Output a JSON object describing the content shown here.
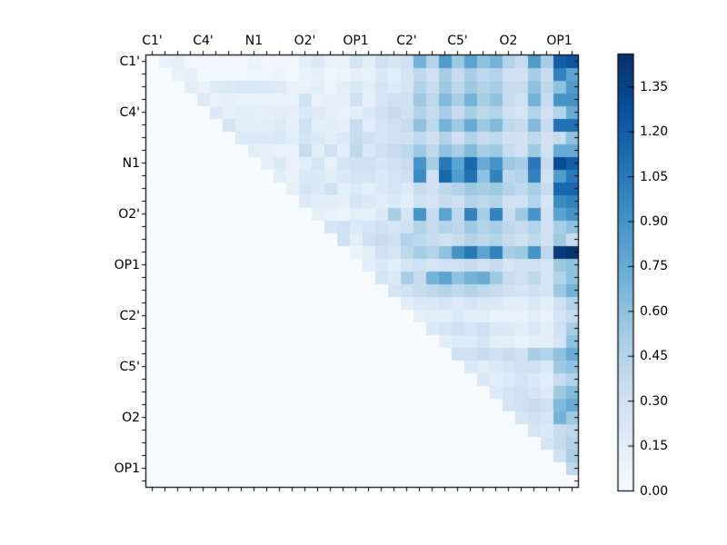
{
  "figure": {
    "background": "#ffffff",
    "frame_color": "#000000",
    "label_color": "#000000"
  },
  "chart_data": {
    "type": "heatmap",
    "title": "",
    "colormap": "Blues",
    "vmin": 0.0,
    "vmax": 1.46,
    "n_rows": 34,
    "n_cols": 34,
    "grid": false,
    "triangular": "upper",
    "x_tick_labels": [
      "C1'",
      "C4'",
      "N1",
      "O2'",
      "OP1",
      "C2'",
      "C5'",
      "O2",
      "OP1"
    ],
    "x_tick_positions": [
      0,
      4,
      8,
      12,
      16,
      20,
      24,
      28,
      32
    ],
    "y_tick_labels": [
      "C1'",
      "C4'",
      "N1",
      "O2'",
      "OP1",
      "C2'",
      "C5'",
      "O2",
      "OP1"
    ],
    "y_tick_positions": [
      0,
      4,
      8,
      12,
      16,
      20,
      24,
      28,
      32
    ],
    "colorbar": {
      "position": "right",
      "tick_labels": [
        "0.00",
        "0.15",
        "0.30",
        "0.45",
        "0.60",
        "0.75",
        "0.90",
        "1.05",
        "1.20",
        "1.35"
      ],
      "tick_values": [
        0.0,
        0.15,
        0.3,
        0.45,
        0.6,
        0.75,
        0.9,
        1.05,
        1.2,
        1.35
      ]
    },
    "colormap_stops": [
      [
        0.0,
        "#f7fbff"
      ],
      [
        0.125,
        "#deebf7"
      ],
      [
        0.25,
        "#c6dbef"
      ],
      [
        0.375,
        "#9ecae1"
      ],
      [
        0.5,
        "#6baed6"
      ],
      [
        0.625,
        "#4292c6"
      ],
      [
        0.75,
        "#2171b5"
      ],
      [
        0.875,
        "#08519c"
      ],
      [
        1.0,
        "#08306b"
      ]
    ],
    "matrix": [
      [
        0,
        0.1,
        0.12,
        0.05,
        0.04,
        0.04,
        0.05,
        0.04,
        0.08,
        0.05,
        0.06,
        0.05,
        0.15,
        0.2,
        0.1,
        0.1,
        0.25,
        0.15,
        0.3,
        0.25,
        0.3,
        0.7,
        0.45,
        0.85,
        0.55,
        0.8,
        0.6,
        0.7,
        0.45,
        0.35,
        0.85,
        0.5,
        1.2,
        1.25
      ],
      [
        0,
        0,
        0.1,
        0.12,
        0.05,
        0.04,
        0.04,
        0.05,
        0.06,
        0.06,
        0.07,
        0.05,
        0.1,
        0.12,
        0.06,
        0.08,
        0.12,
        0.1,
        0.2,
        0.15,
        0.25,
        0.4,
        0.3,
        0.5,
        0.35,
        0.5,
        0.4,
        0.45,
        0.3,
        0.3,
        0.5,
        0.35,
        1.0,
        0.8
      ],
      [
        0,
        0,
        0,
        0.15,
        0.1,
        0.18,
        0.2,
        0.22,
        0.22,
        0.2,
        0.18,
        0.1,
        0.1,
        0.15,
        0.08,
        0.15,
        0.22,
        0.15,
        0.25,
        0.2,
        0.25,
        0.45,
        0.35,
        0.55,
        0.4,
        0.55,
        0.45,
        0.5,
        0.35,
        0.35,
        0.6,
        0.4,
        0.6,
        0.85
      ],
      [
        0,
        0,
        0,
        0,
        0.18,
        0.1,
        0.12,
        0.1,
        0.1,
        0.1,
        0.1,
        0.1,
        0.3,
        0.1,
        0.12,
        0.12,
        0.3,
        0.12,
        0.25,
        0.3,
        0.3,
        0.55,
        0.4,
        0.65,
        0.5,
        0.7,
        0.5,
        0.6,
        0.35,
        0.3,
        0.7,
        0.35,
        0.9,
        0.9
      ],
      [
        0,
        0,
        0,
        0,
        0,
        0.2,
        0.12,
        0.15,
        0.15,
        0.12,
        0.15,
        0.12,
        0.2,
        0.18,
        0.12,
        0.1,
        0.15,
        0.2,
        0.3,
        0.35,
        0.3,
        0.45,
        0.35,
        0.5,
        0.35,
        0.5,
        0.4,
        0.45,
        0.3,
        0.25,
        0.45,
        0.3,
        0.45,
        0.75
      ],
      [
        0,
        0,
        0,
        0,
        0,
        0,
        0.25,
        0.15,
        0.15,
        0.15,
        0.18,
        0.12,
        0.3,
        0.15,
        0.15,
        0.12,
        0.35,
        0.15,
        0.25,
        0.3,
        0.35,
        0.6,
        0.4,
        0.7,
        0.55,
        0.75,
        0.55,
        0.65,
        0.4,
        0.35,
        0.65,
        0.35,
        1.1,
        1.1
      ],
      [
        0,
        0,
        0,
        0,
        0,
        0,
        0,
        0.2,
        0.2,
        0.2,
        0.22,
        0.15,
        0.25,
        0.2,
        0.15,
        0.2,
        0.35,
        0.3,
        0.25,
        0.3,
        0.3,
        0.4,
        0.3,
        0.45,
        0.3,
        0.45,
        0.35,
        0.4,
        0.3,
        0.3,
        0.4,
        0.3,
        0.35,
        0.6
      ],
      [
        0,
        0,
        0,
        0,
        0,
        0,
        0,
        0,
        0.15,
        0.12,
        0.1,
        0.1,
        0.35,
        0.15,
        0.3,
        0.15,
        0.4,
        0.2,
        0.3,
        0.35,
        0.4,
        0.55,
        0.4,
        0.6,
        0.5,
        0.65,
        0.5,
        0.55,
        0.35,
        0.3,
        0.55,
        0.3,
        0.75,
        0.75
      ],
      [
        0,
        0,
        0,
        0,
        0,
        0,
        0,
        0,
        0,
        0.12,
        0.2,
        0.1,
        0.15,
        0.25,
        0.1,
        0.25,
        0.3,
        0.3,
        0.25,
        0.3,
        0.35,
        0.9,
        0.5,
        1.05,
        0.8,
        1.15,
        0.75,
        0.9,
        0.55,
        0.5,
        1.05,
        0.35,
        1.3,
        1.2
      ],
      [
        0,
        0,
        0,
        0,
        0,
        0,
        0,
        0,
        0,
        0,
        0.15,
        0.1,
        0.2,
        0.2,
        0.15,
        0.2,
        0.25,
        0.25,
        0.2,
        0.25,
        0.3,
        0.95,
        0.3,
        1.15,
        0.85,
        1.1,
        0.6,
        1.0,
        0.4,
        0.45,
        1.0,
        0.3,
        0.85,
        1.05
      ],
      [
        0,
        0,
        0,
        0,
        0,
        0,
        0,
        0,
        0,
        0,
        0,
        0.12,
        0.25,
        0.2,
        0.3,
        0.15,
        0.2,
        0.15,
        0.2,
        0.25,
        0.2,
        0.35,
        0.3,
        0.4,
        0.45,
        0.55,
        0.5,
        0.55,
        0.45,
        0.4,
        0.5,
        0.35,
        1.15,
        1.15
      ],
      [
        0,
        0,
        0,
        0,
        0,
        0,
        0,
        0,
        0,
        0,
        0,
        0,
        0.2,
        0.15,
        0.15,
        0.12,
        0.25,
        0.2,
        0.15,
        0.2,
        0.15,
        0.3,
        0.25,
        0.35,
        0.3,
        0.45,
        0.4,
        0.45,
        0.3,
        0.3,
        0.45,
        0.25,
        0.95,
        1.0
      ],
      [
        0,
        0,
        0,
        0,
        0,
        0,
        0,
        0,
        0,
        0,
        0,
        0,
        0,
        0.12,
        0.1,
        0.08,
        0.15,
        0.12,
        0.2,
        0.5,
        0.25,
        0.9,
        0.35,
        0.8,
        0.4,
        1.0,
        0.5,
        1.0,
        0.35,
        0.55,
        0.9,
        0.3,
        0.8,
        0.9
      ],
      [
        0,
        0,
        0,
        0,
        0,
        0,
        0,
        0,
        0,
        0,
        0,
        0,
        0,
        0,
        0.25,
        0.3,
        0.2,
        0.25,
        0.3,
        0.25,
        0.3,
        0.45,
        0.35,
        0.45,
        0.4,
        0.55,
        0.45,
        0.5,
        0.4,
        0.35,
        0.45,
        0.3,
        0.5,
        0.6
      ],
      [
        0,
        0,
        0,
        0,
        0,
        0,
        0,
        0,
        0,
        0,
        0,
        0,
        0,
        0,
        0,
        0.3,
        0.15,
        0.3,
        0.35,
        0.3,
        0.45,
        0.4,
        0.35,
        0.3,
        0.35,
        0.45,
        0.4,
        0.45,
        0.35,
        0.3,
        0.4,
        0.3,
        0.55,
        0.35
      ],
      [
        0,
        0,
        0,
        0,
        0,
        0,
        0,
        0,
        0,
        0,
        0,
        0,
        0,
        0,
        0,
        0,
        0.1,
        0.15,
        0.3,
        0.25,
        0.4,
        0.5,
        0.45,
        0.6,
        0.9,
        1.05,
        0.8,
        1.0,
        0.5,
        0.55,
        0.9,
        0.4,
        1.4,
        1.45
      ],
      [
        0,
        0,
        0,
        0,
        0,
        0,
        0,
        0,
        0,
        0,
        0,
        0,
        0,
        0,
        0,
        0,
        0,
        0.15,
        0.2,
        0.15,
        0.25,
        0.3,
        0.25,
        0.3,
        0.3,
        0.35,
        0.3,
        0.35,
        0.25,
        0.3,
        0.3,
        0.25,
        0.55,
        0.6
      ],
      [
        0,
        0,
        0,
        0,
        0,
        0,
        0,
        0,
        0,
        0,
        0,
        0,
        0,
        0,
        0,
        0,
        0,
        0,
        0.25,
        0.2,
        0.5,
        0.35,
        0.7,
        0.8,
        0.6,
        0.7,
        0.75,
        0.55,
        0.35,
        0.3,
        0.4,
        0.25,
        0.45,
        0.6
      ],
      [
        0,
        0,
        0,
        0,
        0,
        0,
        0,
        0,
        0,
        0,
        0,
        0,
        0,
        0,
        0,
        0,
        0,
        0,
        0,
        0.25,
        0.3,
        0.35,
        0.4,
        0.45,
        0.4,
        0.45,
        0.4,
        0.35,
        0.3,
        0.25,
        0.3,
        0.25,
        0.55,
        0.7
      ],
      [
        0,
        0,
        0,
        0,
        0,
        0,
        0,
        0,
        0,
        0,
        0,
        0,
        0,
        0,
        0,
        0,
        0,
        0,
        0,
        0,
        0.15,
        0.2,
        0.2,
        0.25,
        0.2,
        0.25,
        0.2,
        0.2,
        0.15,
        0.15,
        0.2,
        0.15,
        0.3,
        0.45
      ],
      [
        0,
        0,
        0,
        0,
        0,
        0,
        0,
        0,
        0,
        0,
        0,
        0,
        0,
        0,
        0,
        0,
        0,
        0,
        0,
        0,
        0,
        0.12,
        0.15,
        0.15,
        0.2,
        0.15,
        0.15,
        0.1,
        0.1,
        0.1,
        0.15,
        0.1,
        0.25,
        0.35
      ],
      [
        0,
        0,
        0,
        0,
        0,
        0,
        0,
        0,
        0,
        0,
        0,
        0,
        0,
        0,
        0,
        0,
        0,
        0,
        0,
        0,
        0,
        0,
        0.2,
        0.25,
        0.3,
        0.25,
        0.3,
        0.2,
        0.2,
        0.15,
        0.2,
        0.15,
        0.3,
        0.5
      ],
      [
        0,
        0,
        0,
        0,
        0,
        0,
        0,
        0,
        0,
        0,
        0,
        0,
        0,
        0,
        0,
        0,
        0,
        0,
        0,
        0,
        0,
        0,
        0,
        0.15,
        0.2,
        0.2,
        0.25,
        0.15,
        0.15,
        0.1,
        0.15,
        0.15,
        0.25,
        0.6
      ],
      [
        0,
        0,
        0,
        0,
        0,
        0,
        0,
        0,
        0,
        0,
        0,
        0,
        0,
        0,
        0,
        0,
        0,
        0,
        0,
        0,
        0,
        0,
        0,
        0,
        0.3,
        0.3,
        0.35,
        0.3,
        0.35,
        0.3,
        0.5,
        0.45,
        0.6,
        0.75
      ],
      [
        0,
        0,
        0,
        0,
        0,
        0,
        0,
        0,
        0,
        0,
        0,
        0,
        0,
        0,
        0,
        0,
        0,
        0,
        0,
        0,
        0,
        0,
        0,
        0,
        0,
        0.2,
        0.15,
        0.2,
        0.25,
        0.3,
        0.3,
        0.2,
        0.55,
        0.6
      ],
      [
        0,
        0,
        0,
        0,
        0,
        0,
        0,
        0,
        0,
        0,
        0,
        0,
        0,
        0,
        0,
        0,
        0,
        0,
        0,
        0,
        0,
        0,
        0,
        0,
        0,
        0,
        0.2,
        0.15,
        0.2,
        0.25,
        0.2,
        0.15,
        0.35,
        0.45
      ],
      [
        0,
        0,
        0,
        0,
        0,
        0,
        0,
        0,
        0,
        0,
        0,
        0,
        0,
        0,
        0,
        0,
        0,
        0,
        0,
        0,
        0,
        0,
        0,
        0,
        0,
        0,
        0,
        0.2,
        0.25,
        0.3,
        0.25,
        0.2,
        0.55,
        0.65
      ],
      [
        0,
        0,
        0,
        0,
        0,
        0,
        0,
        0,
        0,
        0,
        0,
        0,
        0,
        0,
        0,
        0,
        0,
        0,
        0,
        0,
        0,
        0,
        0,
        0,
        0,
        0,
        0,
        0,
        0.25,
        0.3,
        0.35,
        0.3,
        0.65,
        0.75
      ],
      [
        0,
        0,
        0,
        0,
        0,
        0,
        0,
        0,
        0,
        0,
        0,
        0,
        0,
        0,
        0,
        0,
        0,
        0,
        0,
        0,
        0,
        0,
        0,
        0,
        0,
        0,
        0,
        0,
        0,
        0.25,
        0.3,
        0.25,
        0.7,
        0.55
      ],
      [
        0,
        0,
        0,
        0,
        0,
        0,
        0,
        0,
        0,
        0,
        0,
        0,
        0,
        0,
        0,
        0,
        0,
        0,
        0,
        0,
        0,
        0,
        0,
        0,
        0,
        0,
        0,
        0,
        0,
        0,
        0.25,
        0.2,
        0.35,
        0.4
      ],
      [
        0,
        0,
        0,
        0,
        0,
        0,
        0,
        0,
        0,
        0,
        0,
        0,
        0,
        0,
        0,
        0,
        0,
        0,
        0,
        0,
        0,
        0,
        0,
        0,
        0,
        0,
        0,
        0,
        0,
        0,
        0,
        0.25,
        0.35,
        0.45
      ],
      [
        0,
        0,
        0,
        0,
        0,
        0,
        0,
        0,
        0,
        0,
        0,
        0,
        0,
        0,
        0,
        0,
        0,
        0,
        0,
        0,
        0,
        0,
        0,
        0,
        0,
        0,
        0,
        0,
        0,
        0,
        0,
        0,
        0.3,
        0.5
      ],
      [
        0,
        0,
        0,
        0,
        0,
        0,
        0,
        0,
        0,
        0,
        0,
        0,
        0,
        0,
        0,
        0,
        0,
        0,
        0,
        0,
        0,
        0,
        0,
        0,
        0,
        0,
        0,
        0,
        0,
        0,
        0,
        0,
        0,
        0.4
      ],
      [
        0,
        0,
        0,
        0,
        0,
        0,
        0,
        0,
        0,
        0,
        0,
        0,
        0,
        0,
        0,
        0,
        0,
        0,
        0,
        0,
        0,
        0,
        0,
        0,
        0,
        0,
        0,
        0,
        0,
        0,
        0,
        0,
        0,
        0
      ]
    ]
  }
}
